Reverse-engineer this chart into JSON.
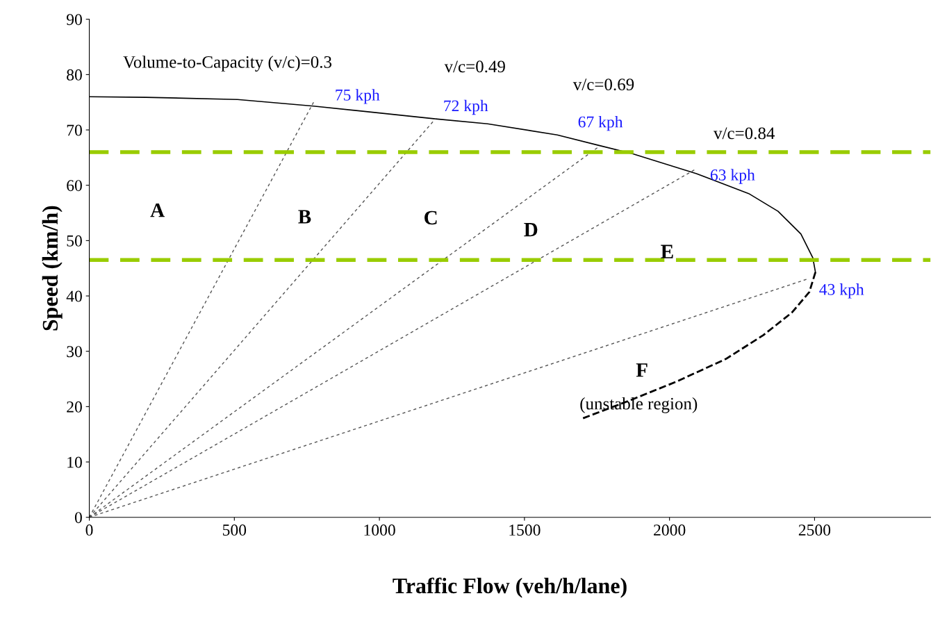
{
  "chart_data": {
    "type": "line",
    "xlabel": "Traffic Flow (veh/h/lane)",
    "ylabel": "Speed (km/h)",
    "xlim": [
      0,
      2900
    ],
    "ylim": [
      0,
      90
    ],
    "xticks": [
      0,
      500,
      1000,
      1500,
      2000,
      2500
    ],
    "yticks": [
      0,
      10,
      20,
      30,
      40,
      50,
      60,
      70,
      80,
      90
    ],
    "grid": false,
    "series": [
      {
        "color": "#000000",
        "line_style": "solid",
        "x": [
          0,
          195,
          511,
          773,
          1193,
          1373,
          1613,
          1757,
          1872,
          2093,
          2273,
          2374,
          2453,
          2494,
          2503
        ],
        "values": [
          76,
          75.9,
          75.5,
          74.3,
          72,
          71.1,
          69.1,
          67.2,
          65.7,
          62.1,
          58.5,
          55.3,
          51.2,
          46.9,
          44.3
        ]
      },
      {
        "color": "#000000",
        "line_style": "dashed",
        "x": [
          2503,
          2482,
          2422,
          2323,
          2194,
          2023,
          1872,
          1702
        ],
        "values": [
          44.3,
          40.7,
          37,
          32.9,
          28.6,
          24.5,
          21.3,
          17.9
        ]
      },
      {
        "color": "#555555",
        "line_style": "dotted",
        "x": [
          0,
          773
        ],
        "values": [
          0,
          75
        ],
        "value_labels": [
          null,
          "75 kph"
        ]
      },
      {
        "color": "#555555",
        "line_style": "dotted",
        "x": [
          0,
          1193
        ],
        "values": [
          0,
          72
        ],
        "value_labels": [
          null,
          "72 kph"
        ]
      },
      {
        "color": "#555555",
        "line_style": "dotted",
        "x": [
          0,
          1757
        ],
        "values": [
          0,
          67
        ],
        "value_labels": [
          null,
          "67 kph"
        ]
      },
      {
        "color": "#555555",
        "line_style": "dotted",
        "x": [
          0,
          2093
        ],
        "values": [
          0,
          63
        ],
        "value_labels": [
          null,
          "63 kph"
        ]
      },
      {
        "color": "#555555",
        "line_style": "dotted",
        "x": [
          0,
          2472
        ],
        "values": [
          0,
          43
        ],
        "value_labels": [
          null,
          "43 kph"
        ]
      }
    ],
    "ref_lines": [
      {
        "axis": "y",
        "value": 66,
        "color": "#99cc00",
        "line_style": "dashed"
      },
      {
        "axis": "y",
        "value": 46.5,
        "color": "#99cc00",
        "line_style": "dashed"
      }
    ],
    "annotations": [
      "Volume-to-Capacity (v/c)=0.3",
      "v/c=0.49",
      "v/c=0.69",
      "v/c=0.84",
      "A",
      "B",
      "C",
      "D",
      "E",
      "F",
      "(unstable region)"
    ]
  }
}
